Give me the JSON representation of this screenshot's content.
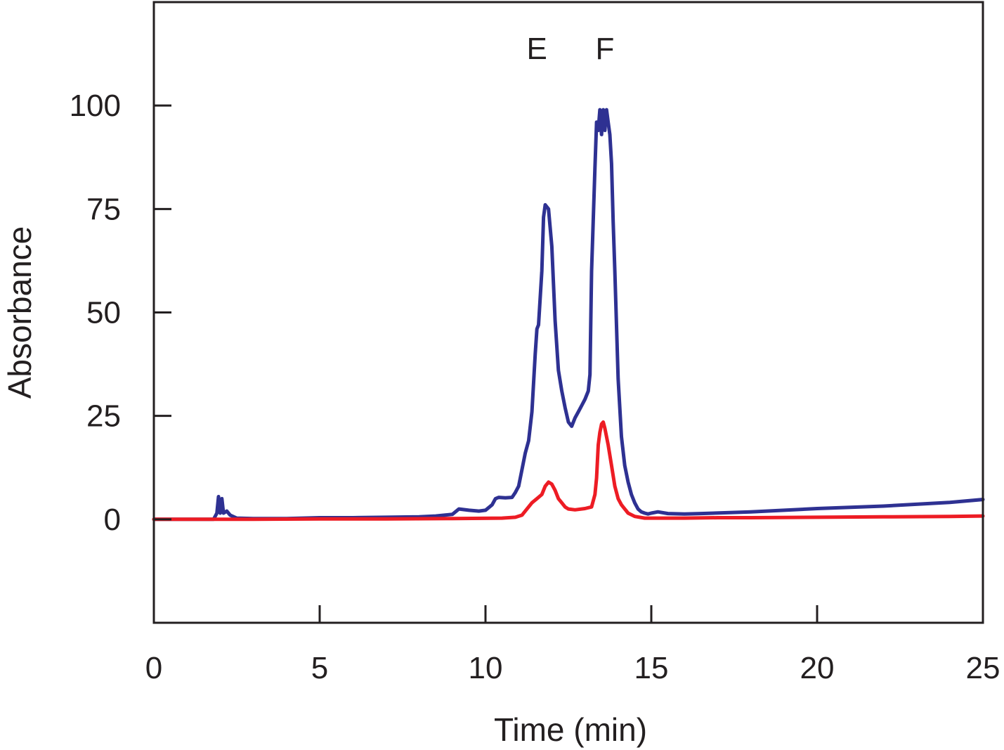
{
  "chart_data": {
    "type": "line",
    "title": "",
    "xlabel": "Time (min)",
    "ylabel": "Absorbance",
    "xlim": [
      0,
      25
    ],
    "ylim": [
      -25,
      125
    ],
    "xticks": [
      0,
      5,
      10,
      15,
      20,
      25
    ],
    "yticks": [
      0,
      25,
      50,
      75,
      100
    ],
    "grid": false,
    "legend": "none",
    "annotations": [
      {
        "text": "E",
        "x": 11.55,
        "y": 114
      },
      {
        "text": "F",
        "x": 13.6,
        "y": 114
      }
    ],
    "series": [
      {
        "color": "#2e3192",
        "x": [
          0,
          1.8,
          1.9,
          1.95,
          2.0,
          2.05,
          2.1,
          2.2,
          2.3,
          2.5,
          3.0,
          4.0,
          5.0,
          6.0,
          7.0,
          8.0,
          8.5,
          9.0,
          9.2,
          9.5,
          9.8,
          10.0,
          10.2,
          10.3,
          10.4,
          10.6,
          10.8,
          10.9,
          11.0,
          11.1,
          11.2,
          11.3,
          11.4,
          11.5,
          11.55,
          11.6,
          11.7,
          11.75,
          11.8,
          11.9,
          12.0,
          12.1,
          12.2,
          12.3,
          12.4,
          12.5,
          12.6,
          12.7,
          12.8,
          12.9,
          13.0,
          13.1,
          13.15,
          13.2,
          13.3,
          13.35,
          13.4,
          13.45,
          13.5,
          13.55,
          13.6,
          13.65,
          13.7,
          13.75,
          13.8,
          13.85,
          13.9,
          14.0,
          14.1,
          14.2,
          14.3,
          14.4,
          14.5,
          14.6,
          14.7,
          14.8,
          14.9,
          15.0,
          15.2,
          15.5,
          16.0,
          16.5,
          18.0,
          20.0,
          22.0,
          24.0,
          25.0
        ],
        "y": [
          0,
          0,
          1.5,
          5.5,
          1.5,
          5,
          1.5,
          2,
          1,
          0.3,
          0.2,
          0.2,
          0.4,
          0.4,
          0.5,
          0.6,
          0.8,
          1.2,
          2.5,
          2.2,
          2,
          2.2,
          3.5,
          5,
          5.3,
          5.2,
          5.3,
          6.5,
          8,
          12,
          16,
          19,
          26,
          40,
          46,
          47,
          60,
          73,
          76,
          75,
          66,
          48,
          36,
          31,
          27,
          23.5,
          22.5,
          24.5,
          26,
          27.5,
          29,
          31,
          35,
          60,
          85,
          96,
          94,
          99,
          93,
          99,
          94,
          99,
          96,
          93,
          86,
          72,
          60,
          34,
          20,
          13,
          9,
          6,
          4,
          2.5,
          1.8,
          1.5,
          1.3,
          1.5,
          1.8,
          1.4,
          1.3,
          1.4,
          1.8,
          2.6,
          3.2,
          4.1,
          4.8
        ]
      },
      {
        "color": "#ed1c24",
        "x": [
          0,
          2.0,
          3.0,
          5.0,
          7.0,
          9.0,
          10.5,
          10.9,
          11.1,
          11.2,
          11.4,
          11.55,
          11.7,
          11.8,
          11.9,
          12.0,
          12.1,
          12.2,
          12.3,
          12.4,
          12.5,
          12.7,
          13.0,
          13.2,
          13.3,
          13.35,
          13.4,
          13.45,
          13.5,
          13.55,
          13.6,
          13.7,
          13.8,
          13.9,
          14.0,
          14.1,
          14.2,
          14.3,
          14.5,
          14.8,
          15.0,
          15.5,
          16.0,
          17.0,
          18.0,
          20.0,
          22.0,
          24.0,
          25.0
        ],
        "y": [
          0,
          0,
          0,
          0.1,
          0.1,
          0.2,
          0.3,
          0.5,
          1,
          2,
          4,
          5,
          6,
          8,
          9,
          8.5,
          7,
          5,
          4,
          3,
          2.5,
          2.3,
          2.6,
          3,
          6,
          10,
          18,
          21,
          23,
          23.5,
          22,
          18,
          13,
          8,
          5,
          3.5,
          2.5,
          1.5,
          0.7,
          0.3,
          0.3,
          0.3,
          0.3,
          0.4,
          0.4,
          0.5,
          0.6,
          0.7,
          0.8
        ]
      }
    ]
  }
}
